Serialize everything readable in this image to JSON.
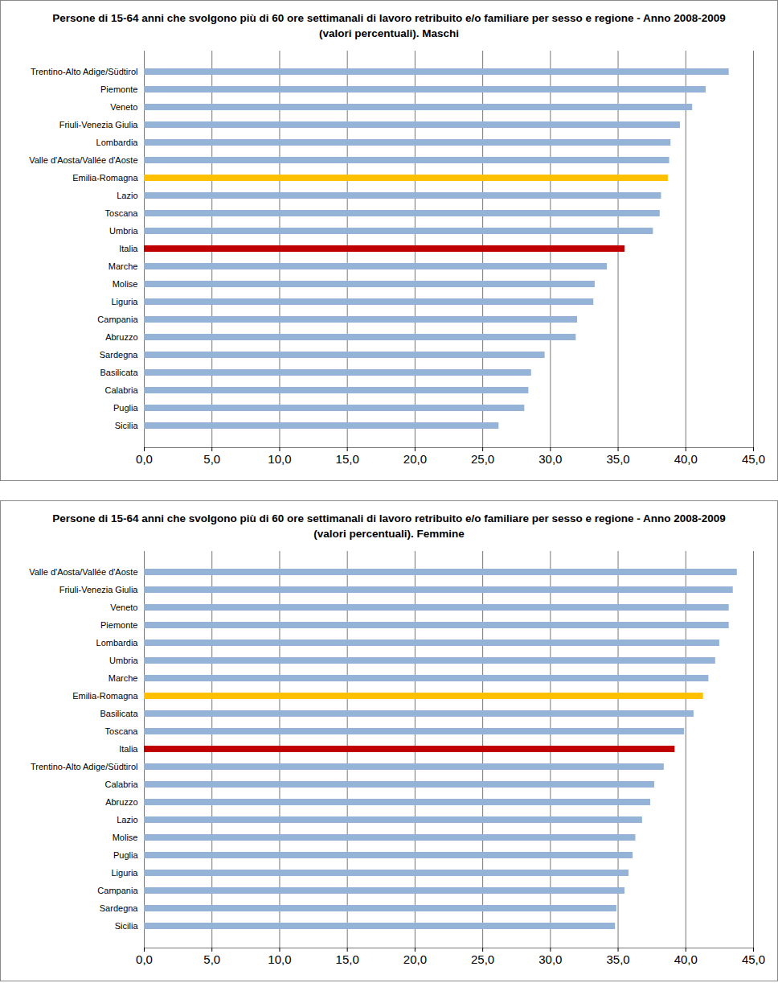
{
  "chart_data": [
    {
      "type": "bar",
      "orientation": "horizontal",
      "grid": true,
      "title": "Persone di 15-64 anni che svolgono più di 60 ore settimanali di lavoro retribuito e/o familiare per sesso e regione - Anno 2008-2009 (valori percentuali). Maschi",
      "categories": [
        "Trentino-Alto Adige/Südtirol",
        "Piemonte",
        "Veneto",
        "Friuli-Venezia Giulia",
        "Lombardia",
        "Valle d'Aosta/Vallée d'Aoste",
        "Emilia-Romagna",
        "Lazio",
        "Toscana",
        "Umbria",
        "Italia",
        "Marche",
        "Molise",
        "Liguria",
        "Campania",
        "Abruzzo",
        "Sardegna",
        "Basilicata",
        "Calabria",
        "Puglia",
        "Sicilia"
      ],
      "values": [
        43.2,
        41.5,
        40.5,
        39.6,
        38.9,
        38.8,
        38.7,
        38.2,
        38.1,
        37.6,
        35.5,
        34.2,
        33.3,
        33.2,
        32.0,
        31.9,
        29.6,
        28.6,
        28.4,
        28.1,
        26.2
      ],
      "colors": [
        "#95b3d7",
        "#95b3d7",
        "#95b3d7",
        "#95b3d7",
        "#95b3d7",
        "#95b3d7",
        "#ffc000",
        "#95b3d7",
        "#95b3d7",
        "#95b3d7",
        "#c00000",
        "#95b3d7",
        "#95b3d7",
        "#95b3d7",
        "#95b3d7",
        "#95b3d7",
        "#95b3d7",
        "#95b3d7",
        "#95b3d7",
        "#95b3d7",
        "#95b3d7"
      ],
      "xlim": [
        0,
        45
      ],
      "xticks": [
        {
          "value": 0,
          "label": "0,0"
        },
        {
          "value": 5,
          "label": "5,0"
        },
        {
          "value": 10,
          "label": "10,0"
        },
        {
          "value": 15,
          "label": "15,0"
        },
        {
          "value": 20,
          "label": "20,0"
        },
        {
          "value": 25,
          "label": "25,0"
        },
        {
          "value": 30,
          "label": "30,0"
        },
        {
          "value": 35,
          "label": "35,0"
        },
        {
          "value": 40,
          "label": "40,0"
        },
        {
          "value": 45,
          "label": "45,0"
        }
      ]
    },
    {
      "type": "bar",
      "orientation": "horizontal",
      "grid": true,
      "title": "Persone di 15-64 anni che svolgono più di 60 ore settimanali di lavoro retribuito e/o familiare per sesso e regione - Anno 2008-2009 (valori percentuali). Femmine",
      "categories": [
        "Valle d'Aosta/Vallée d'Aoste",
        "Friuli-Venezia Giulia",
        "Veneto",
        "Piemonte",
        "Lombardia",
        "Umbria",
        "Marche",
        "Emilia-Romagna",
        "Basilicata",
        "Toscana",
        "Italia",
        "Trentino-Alto Adige/Südtirol",
        "Calabria",
        "Abruzzo",
        "Lazio",
        "Molise",
        "Puglia",
        "Liguria",
        "Campania",
        "Sardegna",
        "Sicilia"
      ],
      "values": [
        43.8,
        43.5,
        43.2,
        43.2,
        42.5,
        42.2,
        41.7,
        41.3,
        40.6,
        39.9,
        39.2,
        38.4,
        37.7,
        37.4,
        36.8,
        36.3,
        36.1,
        35.8,
        35.5,
        34.9,
        34.8
      ],
      "colors": [
        "#95b3d7",
        "#95b3d7",
        "#95b3d7",
        "#95b3d7",
        "#95b3d7",
        "#95b3d7",
        "#95b3d7",
        "#ffc000",
        "#95b3d7",
        "#95b3d7",
        "#c00000",
        "#95b3d7",
        "#95b3d7",
        "#95b3d7",
        "#95b3d7",
        "#95b3d7",
        "#95b3d7",
        "#95b3d7",
        "#95b3d7",
        "#95b3d7",
        "#95b3d7"
      ],
      "xlim": [
        0,
        45
      ],
      "xticks": [
        {
          "value": 0,
          "label": "0,0"
        },
        {
          "value": 5,
          "label": "5,0"
        },
        {
          "value": 10,
          "label": "10,0"
        },
        {
          "value": 15,
          "label": "15,0"
        },
        {
          "value": 20,
          "label": "20,0"
        },
        {
          "value": 25,
          "label": "25,0"
        },
        {
          "value": 30,
          "label": "30,0"
        },
        {
          "value": 35,
          "label": "35,0"
        },
        {
          "value": 40,
          "label": "40,0"
        },
        {
          "value": 45,
          "label": "45,0"
        }
      ]
    }
  ]
}
